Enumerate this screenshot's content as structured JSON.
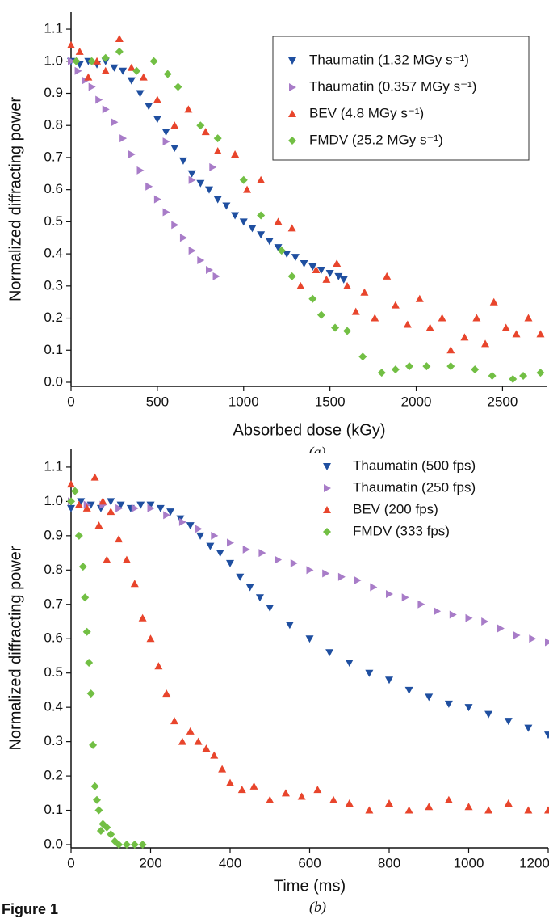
{
  "figure_label": "Figure 1",
  "chart_data": [
    {
      "type": "scatter",
      "label": "(a)",
      "x_label": "Absorbed dose (kGy)",
      "y_label": "Normalized diffracting power",
      "xlim": [
        0,
        2760
      ],
      "ylim": [
        -0.0126,
        1.153
      ],
      "xticks": [
        0,
        500,
        1000,
        1500,
        2000,
        2500
      ],
      "yticks": [
        {
          "value": 0,
          "label": "0.0"
        },
        0.1,
        0.2,
        0.3,
        0.4,
        0.5,
        0.6,
        0.7,
        0.8,
        0.9,
        {
          "value": 1,
          "label": "1.0"
        },
        1.1
      ],
      "legend": "upper right",
      "legend_frame": true,
      "series": [
        {
          "name": "Thaumatin (1.32 MGy s⁻¹)",
          "color": "#1f4fa0",
          "marker": "triangle-down",
          "x": [
            0,
            50,
            100,
            150,
            200,
            250,
            300,
            350,
            400,
            450,
            500,
            550,
            600,
            650,
            700,
            750,
            800,
            850,
            900,
            950,
            1000,
            1050,
            1100,
            1150,
            1200,
            1250,
            1300,
            1350,
            1400,
            1450,
            1500,
            1550,
            1580
          ],
          "values": [
            1.0,
            0.99,
            1.0,
            0.99,
            1.0,
            0.98,
            0.97,
            0.94,
            0.9,
            0.86,
            0.82,
            0.78,
            0.73,
            0.69,
            0.65,
            0.62,
            0.6,
            0.57,
            0.55,
            0.52,
            0.5,
            0.48,
            0.46,
            0.44,
            0.42,
            0.4,
            0.39,
            0.37,
            0.36,
            0.35,
            0.34,
            0.33,
            0.32
          ]
        },
        {
          "name": "Thaumatin (0.357 MGy s⁻¹)",
          "color": "#a87cc8",
          "marker": "triangle-right",
          "x": [
            0,
            40,
            80,
            120,
            160,
            200,
            250,
            300,
            350,
            400,
            450,
            500,
            550,
            600,
            650,
            700,
            750,
            800,
            840,
            550,
            700,
            820
          ],
          "values": [
            1.0,
            0.97,
            0.94,
            0.92,
            0.88,
            0.85,
            0.81,
            0.76,
            0.71,
            0.66,
            0.61,
            0.57,
            0.53,
            0.49,
            0.45,
            0.41,
            0.38,
            0.35,
            0.33,
            0.75,
            0.63,
            0.67
          ]
        },
        {
          "name": "BEV (4.8 MGy s⁻¹)",
          "color": "#e8452c",
          "marker": "triangle-up",
          "x": [
            0,
            50,
            100,
            150,
            200,
            280,
            350,
            420,
            500,
            600,
            680,
            780,
            850,
            950,
            1020,
            1100,
            1200,
            1280,
            1330,
            1420,
            1480,
            1540,
            1600,
            1650,
            1700,
            1760,
            1830,
            1880,
            1950,
            2020,
            2080,
            2150,
            2200,
            2280,
            2350,
            2400,
            2450,
            2520,
            2580,
            2650,
            2720
          ],
          "values": [
            1.05,
            1.03,
            0.95,
            1.0,
            0.97,
            1.07,
            0.98,
            0.95,
            0.88,
            0.8,
            0.85,
            0.78,
            0.72,
            0.71,
            0.6,
            0.63,
            0.5,
            0.48,
            0.3,
            0.35,
            0.32,
            0.37,
            0.3,
            0.22,
            0.28,
            0.2,
            0.33,
            0.24,
            0.18,
            0.26,
            0.17,
            0.2,
            0.1,
            0.14,
            0.2,
            0.12,
            0.25,
            0.17,
            0.15,
            0.2,
            0.15
          ]
        },
        {
          "name": "FMDV (25.2 MGy s⁻¹)",
          "color": "#72bf44",
          "marker": "diamond",
          "x": [
            30,
            120,
            200,
            280,
            380,
            480,
            560,
            620,
            750,
            850,
            1000,
            1100,
            1220,
            1280,
            1400,
            1450,
            1530,
            1600,
            1690,
            1800,
            1880,
            1960,
            2060,
            2200,
            2340,
            2440,
            2560,
            2620,
            2720
          ],
          "values": [
            1.0,
            1.0,
            1.01,
            1.03,
            0.97,
            1.0,
            0.96,
            0.92,
            0.8,
            0.76,
            0.63,
            0.52,
            0.41,
            0.33,
            0.26,
            0.21,
            0.17,
            0.16,
            0.08,
            0.03,
            0.04,
            0.05,
            0.05,
            0.05,
            0.04,
            0.02,
            0.01,
            0.02,
            0.03
          ]
        }
      ]
    },
    {
      "type": "scatter",
      "label": "(b)",
      "x_label": "Time (ms)",
      "y_label": "Normalized diffracting power",
      "xlim": [
        0,
        1200
      ],
      "ylim": [
        -0.0094,
        1.154
      ],
      "xticks": [
        0,
        200,
        400,
        600,
        800,
        1000,
        1200
      ],
      "yticks": [
        {
          "value": 0,
          "label": "0.0"
        },
        0.1,
        0.2,
        0.3,
        0.4,
        0.5,
        0.6,
        0.7,
        0.8,
        0.9,
        {
          "value": 1,
          "label": "1.0"
        },
        1.1
      ],
      "legend": "upper right",
      "legend_frame": false,
      "series": [
        {
          "name": "Thaumatin (500 fps)",
          "color": "#1f4fa0",
          "marker": "triangle-down",
          "x": [
            0,
            25,
            50,
            75,
            100,
            125,
            150,
            175,
            200,
            225,
            250,
            275,
            300,
            325,
            350,
            375,
            400,
            425,
            450,
            475,
            500,
            550,
            600,
            650,
            700,
            750,
            800,
            850,
            900,
            950,
            1000,
            1050,
            1100,
            1150,
            1200
          ],
          "values": [
            0.98,
            1.0,
            0.99,
            0.98,
            1.0,
            0.99,
            0.98,
            0.99,
            0.99,
            0.98,
            0.97,
            0.95,
            0.93,
            0.9,
            0.87,
            0.85,
            0.82,
            0.78,
            0.75,
            0.72,
            0.69,
            0.64,
            0.6,
            0.56,
            0.53,
            0.5,
            0.48,
            0.45,
            0.43,
            0.41,
            0.4,
            0.38,
            0.36,
            0.34,
            0.32
          ]
        },
        {
          "name": "Thaumatin (250 fps)",
          "color": "#a87cc8",
          "marker": "triangle-right",
          "x": [
            0,
            40,
            80,
            120,
            160,
            200,
            240,
            280,
            320,
            360,
            400,
            440,
            480,
            520,
            560,
            600,
            640,
            680,
            720,
            760,
            800,
            840,
            880,
            920,
            960,
            1000,
            1040,
            1080,
            1120,
            1160,
            1200
          ],
          "values": [
            1.0,
            0.99,
            0.99,
            0.98,
            0.98,
            0.98,
            0.96,
            0.94,
            0.92,
            0.9,
            0.88,
            0.86,
            0.85,
            0.83,
            0.82,
            0.8,
            0.79,
            0.78,
            0.77,
            0.75,
            0.73,
            0.72,
            0.7,
            0.68,
            0.67,
            0.66,
            0.65,
            0.63,
            0.61,
            0.6,
            0.59
          ]
        },
        {
          "name": "BEV (200 fps)",
          "color": "#e8452c",
          "marker": "triangle-up",
          "x": [
            0,
            20,
            40,
            60,
            70,
            80,
            90,
            100,
            120,
            140,
            160,
            180,
            200,
            220,
            240,
            260,
            280,
            300,
            320,
            340,
            360,
            380,
            400,
            430,
            460,
            500,
            540,
            580,
            620,
            660,
            700,
            750,
            800,
            850,
            900,
            950,
            1000,
            1050,
            1100,
            1150,
            1200
          ],
          "values": [
            1.05,
            0.99,
            0.98,
            1.07,
            0.93,
            1.0,
            0.83,
            0.97,
            0.89,
            0.83,
            0.76,
            0.66,
            0.6,
            0.52,
            0.44,
            0.36,
            0.3,
            0.33,
            0.3,
            0.28,
            0.26,
            0.22,
            0.18,
            0.16,
            0.17,
            0.13,
            0.15,
            0.14,
            0.16,
            0.13,
            0.12,
            0.1,
            0.12,
            0.1,
            0.11,
            0.13,
            0.11,
            0.1,
            0.12,
            0.1,
            0.1
          ]
        },
        {
          "name": "FMDV (333 fps)",
          "color": "#72bf44",
          "marker": "diamond",
          "x": [
            0,
            10,
            20,
            30,
            35,
            40,
            45,
            50,
            55,
            60,
            65,
            70,
            75,
            80,
            90,
            100,
            110,
            120,
            140,
            160,
            180
          ],
          "values": [
            1.0,
            1.03,
            0.9,
            0.81,
            0.72,
            0.62,
            0.53,
            0.44,
            0.29,
            0.17,
            0.13,
            0.1,
            0.04,
            0.06,
            0.05,
            0.03,
            0.01,
            0,
            0,
            0,
            0
          ]
        }
      ]
    }
  ]
}
